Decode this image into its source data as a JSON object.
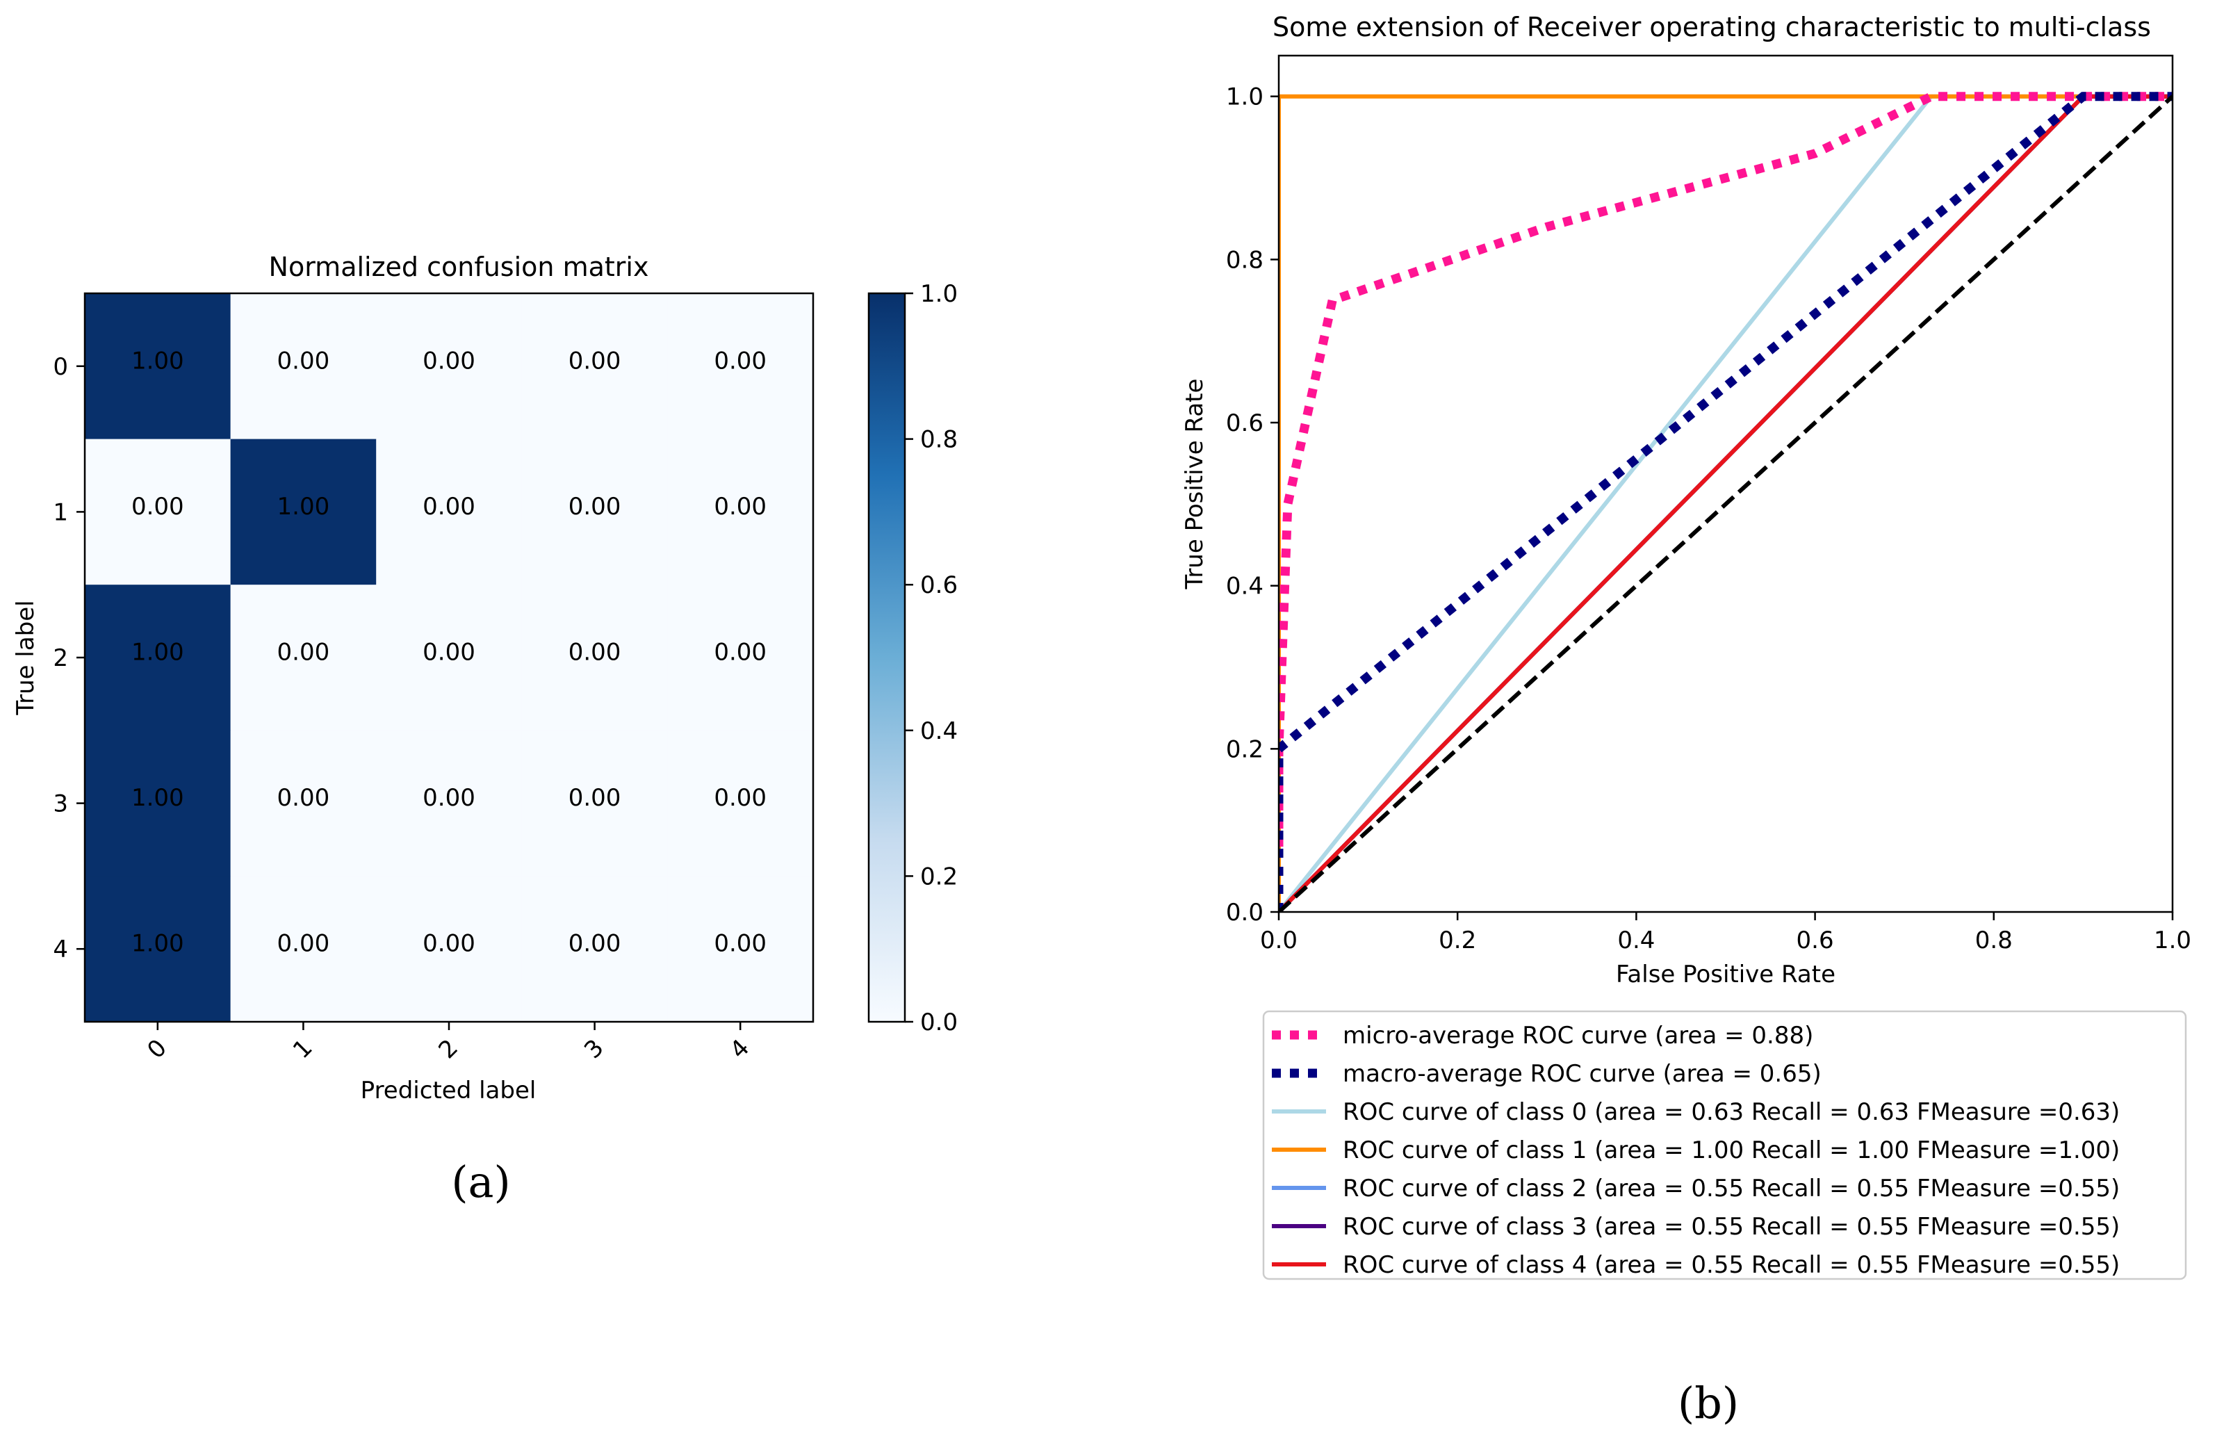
{
  "chart_data": [
    {
      "type": "heatmap",
      "title": "Normalized confusion matrix",
      "xlabel": "Predicted label",
      "ylabel": "True label",
      "x_ticks": [
        "0",
        "1",
        "2",
        "3",
        "4"
      ],
      "y_ticks": [
        "0",
        "1",
        "2",
        "3",
        "4"
      ],
      "matrix": [
        [
          1.0,
          0.0,
          0.0,
          0.0,
          0.0
        ],
        [
          0.0,
          1.0,
          0.0,
          0.0,
          0.0
        ],
        [
          1.0,
          0.0,
          0.0,
          0.0,
          0.0
        ],
        [
          1.0,
          0.0,
          0.0,
          0.0,
          0.0
        ],
        [
          1.0,
          0.0,
          0.0,
          0.0,
          0.0
        ]
      ],
      "cell_labels": [
        [
          "1.00",
          "0.00",
          "0.00",
          "0.00",
          "0.00"
        ],
        [
          "0.00",
          "1.00",
          "0.00",
          "0.00",
          "0.00"
        ],
        [
          "1.00",
          "0.00",
          "0.00",
          "0.00",
          "0.00"
        ],
        [
          "1.00",
          "0.00",
          "0.00",
          "0.00",
          "0.00"
        ],
        [
          "1.00",
          "0.00",
          "0.00",
          "0.00",
          "0.00"
        ]
      ],
      "colormap": {
        "low": "#f7fbff",
        "high": "#08306b"
      },
      "colorbar_range": [
        0,
        1
      ],
      "colorbar_ticks": [
        "0.0",
        "0.2",
        "0.4",
        "0.6",
        "0.8",
        "1.0"
      ],
      "caption": "(a)"
    },
    {
      "type": "line",
      "title": "Some extension of Receiver operating characteristic to multi-class",
      "xlabel": "False Positive Rate",
      "ylabel": "True Positive Rate",
      "xlim": [
        0,
        1
      ],
      "ylim": [
        0,
        1.05
      ],
      "x_ticks": [
        0.0,
        0.2,
        0.4,
        0.6,
        0.8,
        1.0
      ],
      "y_ticks": [
        0.0,
        0.2,
        0.4,
        0.6,
        0.8,
        1.0
      ],
      "x_tick_labels": [
        "0.0",
        "0.2",
        "0.4",
        "0.6",
        "0.8",
        "1.0"
      ],
      "y_tick_labels": [
        "0.0",
        "0.2",
        "0.4",
        "0.6",
        "0.8",
        "1.0"
      ],
      "legend_position": "below",
      "series": [
        {
          "name": "micro-average ROC curve (area = 0.88)",
          "color": "#ff1493",
          "style": "dotted-thick",
          "x": [
            0,
            0,
            0.01,
            0.06,
            0.3,
            0.6,
            0.73,
            0.9,
            1.0
          ],
          "y": [
            0.08,
            0.2,
            0.5,
            0.75,
            0.84,
            0.93,
            1.0,
            1.0,
            1.0
          ]
        },
        {
          "name": "macro-average ROC curve (area = 0.65)",
          "color": "#000080",
          "style": "dotted-thick",
          "x": [
            0,
            0.0,
            0.9,
            1.0
          ],
          "y": [
            0.0,
            0.2,
            1.0,
            1.0
          ]
        },
        {
          "name": "ROC curve of class 0 (area = 0.63  Recall = 0.63 FMeasure =0.63)",
          "color": "#add8e6",
          "style": "solid",
          "x": [
            0,
            0.73,
            1.0
          ],
          "y": [
            0,
            1.0,
            1.0
          ]
        },
        {
          "name": "ROC curve of class 1 (area = 1.00  Recall = 1.00 FMeasure =1.00)",
          "color": "#ff8c00",
          "style": "solid",
          "x": [
            0,
            0,
            1.0
          ],
          "y": [
            0,
            1.0,
            1.0
          ]
        },
        {
          "name": "ROC curve of class 2 (area = 0.55  Recall = 0.55 FMeasure =0.55)",
          "color": "#6495ed",
          "style": "solid",
          "x": [
            0,
            0.9,
            1.0
          ],
          "y": [
            0,
            1.0,
            1.0
          ]
        },
        {
          "name": "ROC curve of class 3 (area = 0.55  Recall = 0.55 FMeasure =0.55)",
          "color": "#4b0082",
          "style": "solid",
          "x": [
            0,
            0.9,
            1.0
          ],
          "y": [
            0,
            1.0,
            1.0
          ]
        },
        {
          "name": "ROC curve of class 4 (area = 0.55  Recall = 0.55 FMeasure =0.55)",
          "color": "#e8141c",
          "style": "solid",
          "x": [
            0,
            0.9,
            1.0
          ],
          "y": [
            0,
            1.0,
            1.0
          ]
        }
      ],
      "reference_line": {
        "x": [
          0,
          1
        ],
        "y": [
          0,
          1
        ],
        "color": "#000000",
        "style": "dashed"
      },
      "caption": "(b)"
    }
  ]
}
